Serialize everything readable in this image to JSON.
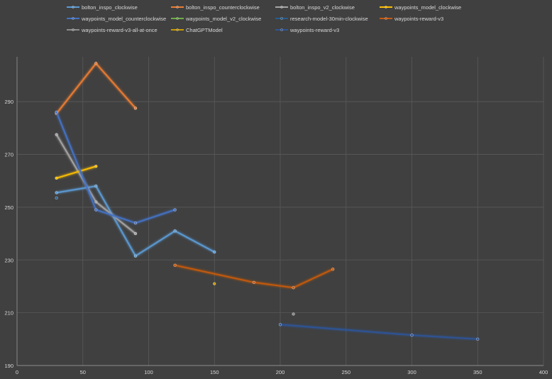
{
  "chart_data": {
    "type": "line",
    "title": "",
    "xlabel": "",
    "ylabel": "",
    "xlim": [
      0,
      400
    ],
    "ylim": [
      190,
      307
    ],
    "xticks": [
      0,
      50,
      100,
      150,
      200,
      250,
      300,
      350,
      400
    ],
    "yticks": [
      190,
      210,
      230,
      250,
      270,
      290
    ],
    "grid": true,
    "legend_position": "top",
    "background": "#404040",
    "series": [
      {
        "name": "bolton_inspo_clockwise",
        "color": "#5b9bd5",
        "points": [
          [
            30,
            255.5
          ],
          [
            60,
            258
          ],
          [
            90,
            231.5
          ],
          [
            120,
            241
          ],
          [
            150,
            233
          ]
        ]
      },
      {
        "name": "bolton_inspo_counterclockwise",
        "color": "#ed7d31",
        "points": [
          [
            30,
            285.5
          ],
          [
            60,
            304.5
          ],
          [
            90,
            287.5
          ]
        ]
      },
      {
        "name": "bolton_inspo_v2_clockwise",
        "color": "#a5a5a5",
        "points": [
          [
            30,
            277.5
          ],
          [
            60,
            252
          ],
          [
            90,
            240
          ]
        ]
      },
      {
        "name": "waypoints_model_clockwise",
        "color": "#ffc000",
        "points": [
          [
            30,
            261
          ],
          [
            60,
            265.5
          ]
        ]
      },
      {
        "name": "waypoints_model_counterclockwise",
        "color": "#4472c4",
        "points": [
          [
            30,
            286
          ],
          [
            60,
            249
          ],
          [
            90,
            244
          ],
          [
            120,
            249
          ]
        ]
      },
      {
        "name": "waypoints_model_v2_clockwise",
        "color": "#70ad47",
        "points": []
      },
      {
        "name": "research-model-30min-clockwise",
        "color": "#255e91",
        "points": [
          [
            30,
            253.5
          ]
        ]
      },
      {
        "name": "waypoints-reward-v3",
        "color": "#c55a11",
        "points": [
          [
            120,
            228
          ],
          [
            180,
            221.5
          ],
          [
            210,
            219.5
          ],
          [
            240,
            226.5
          ]
        ]
      },
      {
        "name": "waypoints-reward-v3-all-at-once",
        "color": "#8c8c8c",
        "points": [
          [
            210,
            209.5
          ]
        ]
      },
      {
        "name": "ChatGPTModel",
        "color": "#c99a00",
        "points": [
          [
            150,
            221
          ]
        ]
      },
      {
        "name": "waypoints-reward-v3",
        "color": "#2f5597",
        "points": [
          [
            200,
            205.5
          ],
          [
            300,
            201.5
          ],
          [
            350,
            200
          ]
        ]
      }
    ]
  }
}
